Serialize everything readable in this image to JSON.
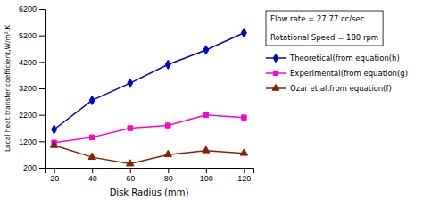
{
  "chart_data": {
    "type": "line",
    "x": [
      20,
      40,
      60,
      80,
      100,
      120
    ],
    "series": [
      {
        "name": "Theoretical(from equation(h)",
        "color": "#0000CD",
        "marker": "diamond",
        "line_style": "solid",
        "values": [
          1650,
          2750,
          3400,
          4100,
          4650,
          5300
        ]
      },
      {
        "name": "Experimental(from equation(g)",
        "color": "#FF00CC",
        "marker": "square",
        "line_style": "solid",
        "values": [
          1150,
          1350,
          1700,
          1800,
          2200,
          2100
        ]
      },
      {
        "name": "Ozar et al,from equation(f)",
        "color": "#8B2000",
        "marker": "triangle",
        "line_style": "solid",
        "values": [
          1050,
          600,
          350,
          700,
          850,
          750
        ]
      }
    ],
    "x_label": "Disk Radius (mm)",
    "y_label": "Local heat transfer coefficient,W/m².K",
    "xlim": [
      15,
      125
    ],
    "ylim": [
      200,
      6200
    ],
    "xticks": [
      20,
      40,
      60,
      80,
      100,
      120
    ],
    "yticks": [
      200,
      1200,
      2200,
      3200,
      4200,
      5200,
      6200
    ],
    "annotation": "Flow rate = 27.77 cc/sec\n\nRotational Speed = 180 rpm",
    "grid": false,
    "legend": "right"
  }
}
